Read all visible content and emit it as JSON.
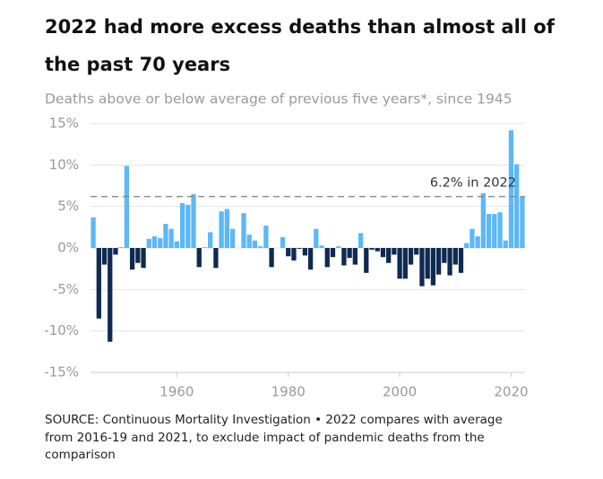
{
  "chart_data": {
    "type": "bar",
    "title": [
      "2022 had more excess deaths than almost all of",
      "the past 70 years"
    ],
    "subtitle": "Deaths above or below average of previous five years*, since 1945",
    "annotation": "6.2% in 2022",
    "source": [
      "SOURCE: Continuous Mortality Investigation • 2022 compares with average",
      "from 2016-19 and 2021, to exclude impact of pandemic deaths from the",
      "comparison"
    ],
    "x": [
      1945,
      1946,
      1947,
      1948,
      1949,
      1950,
      1951,
      1952,
      1953,
      1954,
      1955,
      1956,
      1957,
      1958,
      1959,
      1960,
      1961,
      1962,
      1963,
      1964,
      1965,
      1966,
      1967,
      1968,
      1969,
      1970,
      1971,
      1972,
      1973,
      1974,
      1975,
      1976,
      1977,
      1978,
      1979,
      1980,
      1981,
      1982,
      1983,
      1984,
      1985,
      1986,
      1987,
      1988,
      1989,
      1990,
      1991,
      1992,
      1993,
      1994,
      1995,
      1996,
      1997,
      1998,
      1999,
      2000,
      2001,
      2002,
      2003,
      2004,
      2005,
      2006,
      2007,
      2008,
      2009,
      2010,
      2011,
      2012,
      2013,
      2014,
      2015,
      2016,
      2017,
      2018,
      2019,
      2020,
      2021,
      2022
    ],
    "values": [
      3.7,
      -8.5,
      -2,
      -11.3,
      -0.8,
      0.1,
      9.9,
      -2.6,
      -1.8,
      -2.4,
      1.1,
      1.4,
      1.2,
      2.9,
      2.3,
      0.8,
      5.4,
      5.2,
      6.5,
      -2.3,
      0.1,
      1.9,
      -2.4,
      4.4,
      4.7,
      2.3,
      0,
      4.2,
      1.6,
      0.9,
      0.2,
      2.7,
      -2.3,
      0,
      1.3,
      -1,
      -1.5,
      -0.1,
      -0.9,
      -2.6,
      2.3,
      0.3,
      -2.3,
      -1.1,
      0.2,
      -2.1,
      -1.2,
      -2,
      1.8,
      -3,
      -0.2,
      -0.4,
      -1.1,
      -1.8,
      -0.8,
      -3.7,
      -3.7,
      -2,
      -0.8,
      -4.6,
      -3.7,
      -4.5,
      -3.2,
      -1.8,
      -3.3,
      -2,
      -3,
      0.6,
      2.3,
      1.4,
      6.6,
      4.1,
      4.1,
      4.3,
      0.9,
      14.2,
      10.1,
      6.2
    ],
    "colors": {
      "positive": "#5cb8f6",
      "negative": "#0e2a52"
    },
    "xlim": [
      1944.5,
      2022.5
    ],
    "xticks": [
      1960,
      1980,
      2000,
      2020
    ],
    "ylim": [
      -15,
      15
    ],
    "yticks": [
      {
        "value": -15,
        "label": "-15%"
      },
      {
        "value": -10,
        "label": "-10%"
      },
      {
        "value": -5,
        "label": "-5%"
      },
      {
        "value": 0,
        "label": "0%"
      },
      {
        "value": 5,
        "label": "5%"
      },
      {
        "value": 10,
        "label": "10%"
      },
      {
        "value": 15,
        "label": "15%"
      }
    ],
    "grid": true
  }
}
